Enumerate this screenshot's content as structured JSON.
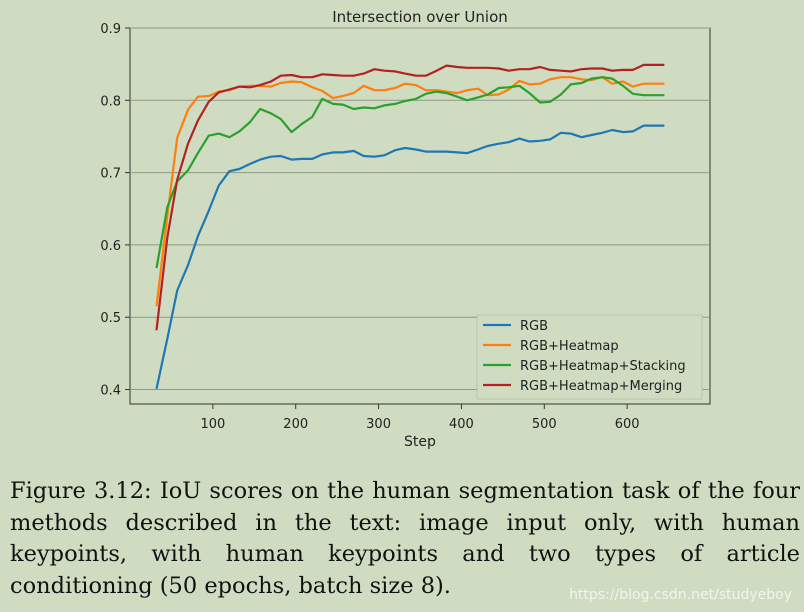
{
  "chart_data": {
    "type": "line",
    "title": "Intersection over Union",
    "xlabel": "Step",
    "ylabel": "",
    "xlim": [
      0,
      700
    ],
    "ylim": [
      0.38,
      0.9
    ],
    "xticks": [
      100,
      200,
      300,
      400,
      500,
      600
    ],
    "yticks": [
      0.4,
      0.5,
      0.6,
      0.7,
      0.8,
      0.9
    ],
    "ytick_labels": [
      "0.4",
      "0.5",
      "0.6",
      "0.7",
      "0.8",
      "0.9"
    ],
    "legend_position": "lower-right",
    "x": [
      32,
      45,
      57,
      70,
      82,
      95,
      107,
      120,
      132,
      145,
      157,
      170,
      182,
      195,
      207,
      220,
      232,
      245,
      257,
      270,
      282,
      295,
      307,
      320,
      332,
      345,
      357,
      370,
      382,
      395,
      407,
      420,
      432,
      445,
      457,
      470,
      482,
      495,
      507,
      520,
      532,
      545,
      557,
      570,
      582,
      595,
      607,
      620,
      632,
      645
    ],
    "series": [
      {
        "name": "RGB",
        "color": "#1f77b4",
        "values": [
          0.401,
          0.47,
          0.537,
          0.572,
          0.612,
          0.647,
          0.682,
          0.702,
          0.705,
          0.712,
          0.718,
          0.722,
          0.723,
          0.718,
          0.719,
          0.719,
          0.725,
          0.728,
          0.728,
          0.73,
          0.723,
          0.722,
          0.724,
          0.731,
          0.734,
          0.732,
          0.729,
          0.729,
          0.729,
          0.728,
          0.727,
          0.732,
          0.737,
          0.74,
          0.742,
          0.747,
          0.743,
          0.744,
          0.746,
          0.755,
          0.754,
          0.749,
          0.752,
          0.755,
          0.759,
          0.756,
          0.757,
          0.765,
          0.765,
          0.765
        ]
      },
      {
        "name": "RGB+Heatmap",
        "color": "#ff7f0e",
        "values": [
          0.515,
          0.64,
          0.748,
          0.787,
          0.805,
          0.806,
          0.812,
          0.814,
          0.819,
          0.82,
          0.82,
          0.819,
          0.824,
          0.826,
          0.825,
          0.818,
          0.813,
          0.803,
          0.806,
          0.81,
          0.82,
          0.814,
          0.814,
          0.817,
          0.823,
          0.821,
          0.814,
          0.814,
          0.812,
          0.81,
          0.814,
          0.816,
          0.807,
          0.808,
          0.815,
          0.827,
          0.822,
          0.823,
          0.829,
          0.832,
          0.832,
          0.829,
          0.828,
          0.832,
          0.823,
          0.826,
          0.819,
          0.823,
          0.823,
          0.823
        ]
      },
      {
        "name": "RGB+Heatmap+Stacking",
        "color": "#2ca02c",
        "values": [
          0.568,
          0.652,
          0.688,
          0.703,
          0.727,
          0.751,
          0.754,
          0.749,
          0.757,
          0.77,
          0.788,
          0.782,
          0.774,
          0.756,
          0.767,
          0.777,
          0.802,
          0.795,
          0.794,
          0.788,
          0.79,
          0.789,
          0.793,
          0.795,
          0.799,
          0.802,
          0.809,
          0.812,
          0.81,
          0.805,
          0.8,
          0.804,
          0.808,
          0.817,
          0.818,
          0.82,
          0.81,
          0.797,
          0.798,
          0.808,
          0.822,
          0.824,
          0.83,
          0.832,
          0.83,
          0.82,
          0.809,
          0.807,
          0.807,
          0.807
        ]
      },
      {
        "name": "RGB+Heatmap+Merging",
        "color": "#b22222",
        "values": [
          0.482,
          0.61,
          0.69,
          0.74,
          0.772,
          0.798,
          0.811,
          0.815,
          0.819,
          0.818,
          0.821,
          0.826,
          0.834,
          0.835,
          0.832,
          0.832,
          0.836,
          0.835,
          0.834,
          0.834,
          0.837,
          0.843,
          0.841,
          0.84,
          0.837,
          0.834,
          0.834,
          0.841,
          0.848,
          0.846,
          0.845,
          0.845,
          0.845,
          0.844,
          0.841,
          0.843,
          0.843,
          0.846,
          0.842,
          0.841,
          0.84,
          0.843,
          0.844,
          0.844,
          0.841,
          0.842,
          0.842,
          0.849,
          0.849,
          0.849
        ]
      }
    ]
  },
  "caption": "Figure 3.12: IoU scores on the human segmentation task of the four methods described in the text: image input only, with human keypoints, with human keypoints and two types of article conditioning (50 epochs, batch size 8).",
  "watermark": "https://blog.csdn.net/studyeboy"
}
